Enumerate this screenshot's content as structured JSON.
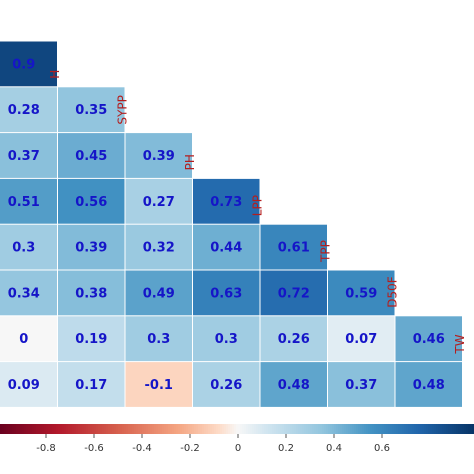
{
  "chart_data": {
    "type": "heatmap",
    "title": "",
    "variables": [
      "H",
      "SYPP",
      "PH",
      "LPP",
      "TPP",
      "D50F",
      "TW"
    ],
    "rows": [
      {
        "name": "H",
        "values": [
          0.9
        ]
      },
      {
        "name": "SYPP",
        "values": [
          0.28,
          0.35
        ]
      },
      {
        "name": "PH",
        "values": [
          0.37,
          0.45,
          0.39
        ]
      },
      {
        "name": "LPP",
        "values": [
          0.51,
          0.56,
          0.27,
          0.73
        ]
      },
      {
        "name": "TPP",
        "values": [
          0.3,
          0.39,
          0.32,
          0.44,
          0.61
        ]
      },
      {
        "name": "D50F",
        "values": [
          0.34,
          0.38,
          0.49,
          0.63,
          0.72,
          0.59
        ]
      },
      {
        "name": "TW",
        "values": [
          0,
          0.19,
          0.3,
          0.3,
          0.26,
          0.07,
          0.46
        ]
      },
      {
        "name": "",
        "values": [
          0.09,
          0.17,
          -0.1,
          0.26,
          0.48,
          0.37,
          0.48
        ]
      }
    ],
    "color_scale": {
      "min": -1,
      "max": 1,
      "low_color": "#67001f",
      "mid_color": "#f7f7f7",
      "high_color": "#053061",
      "ticks": [
        -0.8,
        -0.6,
        -0.4,
        -0.2,
        0,
        0.2,
        0.4,
        0.6
      ]
    },
    "legend": "bottom"
  }
}
